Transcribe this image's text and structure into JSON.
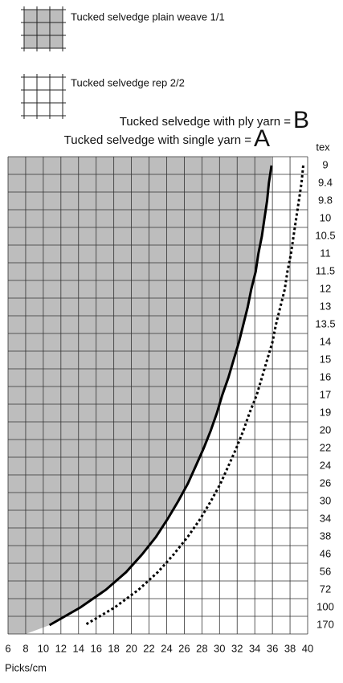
{
  "chart_data": {
    "type": "line",
    "regions": [
      {
        "name": "Tucked selvedge plain weave 1/1",
        "color": "#bdbdbd"
      },
      {
        "name": "Tucked selvedge rep 2/2",
        "color": "#ffffff"
      }
    ],
    "x_label": "Picks/cm",
    "y_label": "tex",
    "categories": [
      "9",
      "9.4",
      "9.8",
      "10",
      "10.5",
      "11",
      "11.5",
      "12",
      "13",
      "13.5",
      "14",
      "15",
      "16",
      "17",
      "19",
      "20",
      "22",
      "24",
      "26",
      "30",
      "34",
      "38",
      "46",
      "56",
      "72",
      "100",
      "170"
    ],
    "series": [
      {
        "name": "Tucked selvedge with single yarn =",
        "letter": "A",
        "color": "#000000",
        "dash": false,
        "values": [
          35.9,
          35.6,
          35.4,
          35.1,
          34.8,
          34.4,
          34.1,
          33.6,
          33.2,
          32.7,
          32.2,
          31.6,
          31.0,
          30.3,
          29.7,
          29.0,
          28.2,
          27.3,
          26.4,
          25.3,
          24.1,
          22.8,
          21.2,
          19.4,
          17.1,
          14.2,
          10.7
        ]
      },
      {
        "name": "Tucked selvedge with ply yarn =",
        "letter": "B",
        "color": "#000000",
        "dash": true,
        "values": [
          39.5,
          39.3,
          39.0,
          38.7,
          38.4,
          38.1,
          37.7,
          37.4,
          36.9,
          36.4,
          36.0,
          35.4,
          34.8,
          34.2,
          33.4,
          32.7,
          31.9,
          31.0,
          30.1,
          29.0,
          27.8,
          26.4,
          24.8,
          23.0,
          20.8,
          18.1,
          14.7
        ]
      }
    ],
    "xlim": [
      6,
      40
    ],
    "xticks": [
      6,
      8,
      10,
      12,
      14,
      16,
      18,
      20,
      22,
      24,
      26,
      28,
      30,
      32,
      34,
      36,
      38,
      40
    ],
    "grid": true
  }
}
